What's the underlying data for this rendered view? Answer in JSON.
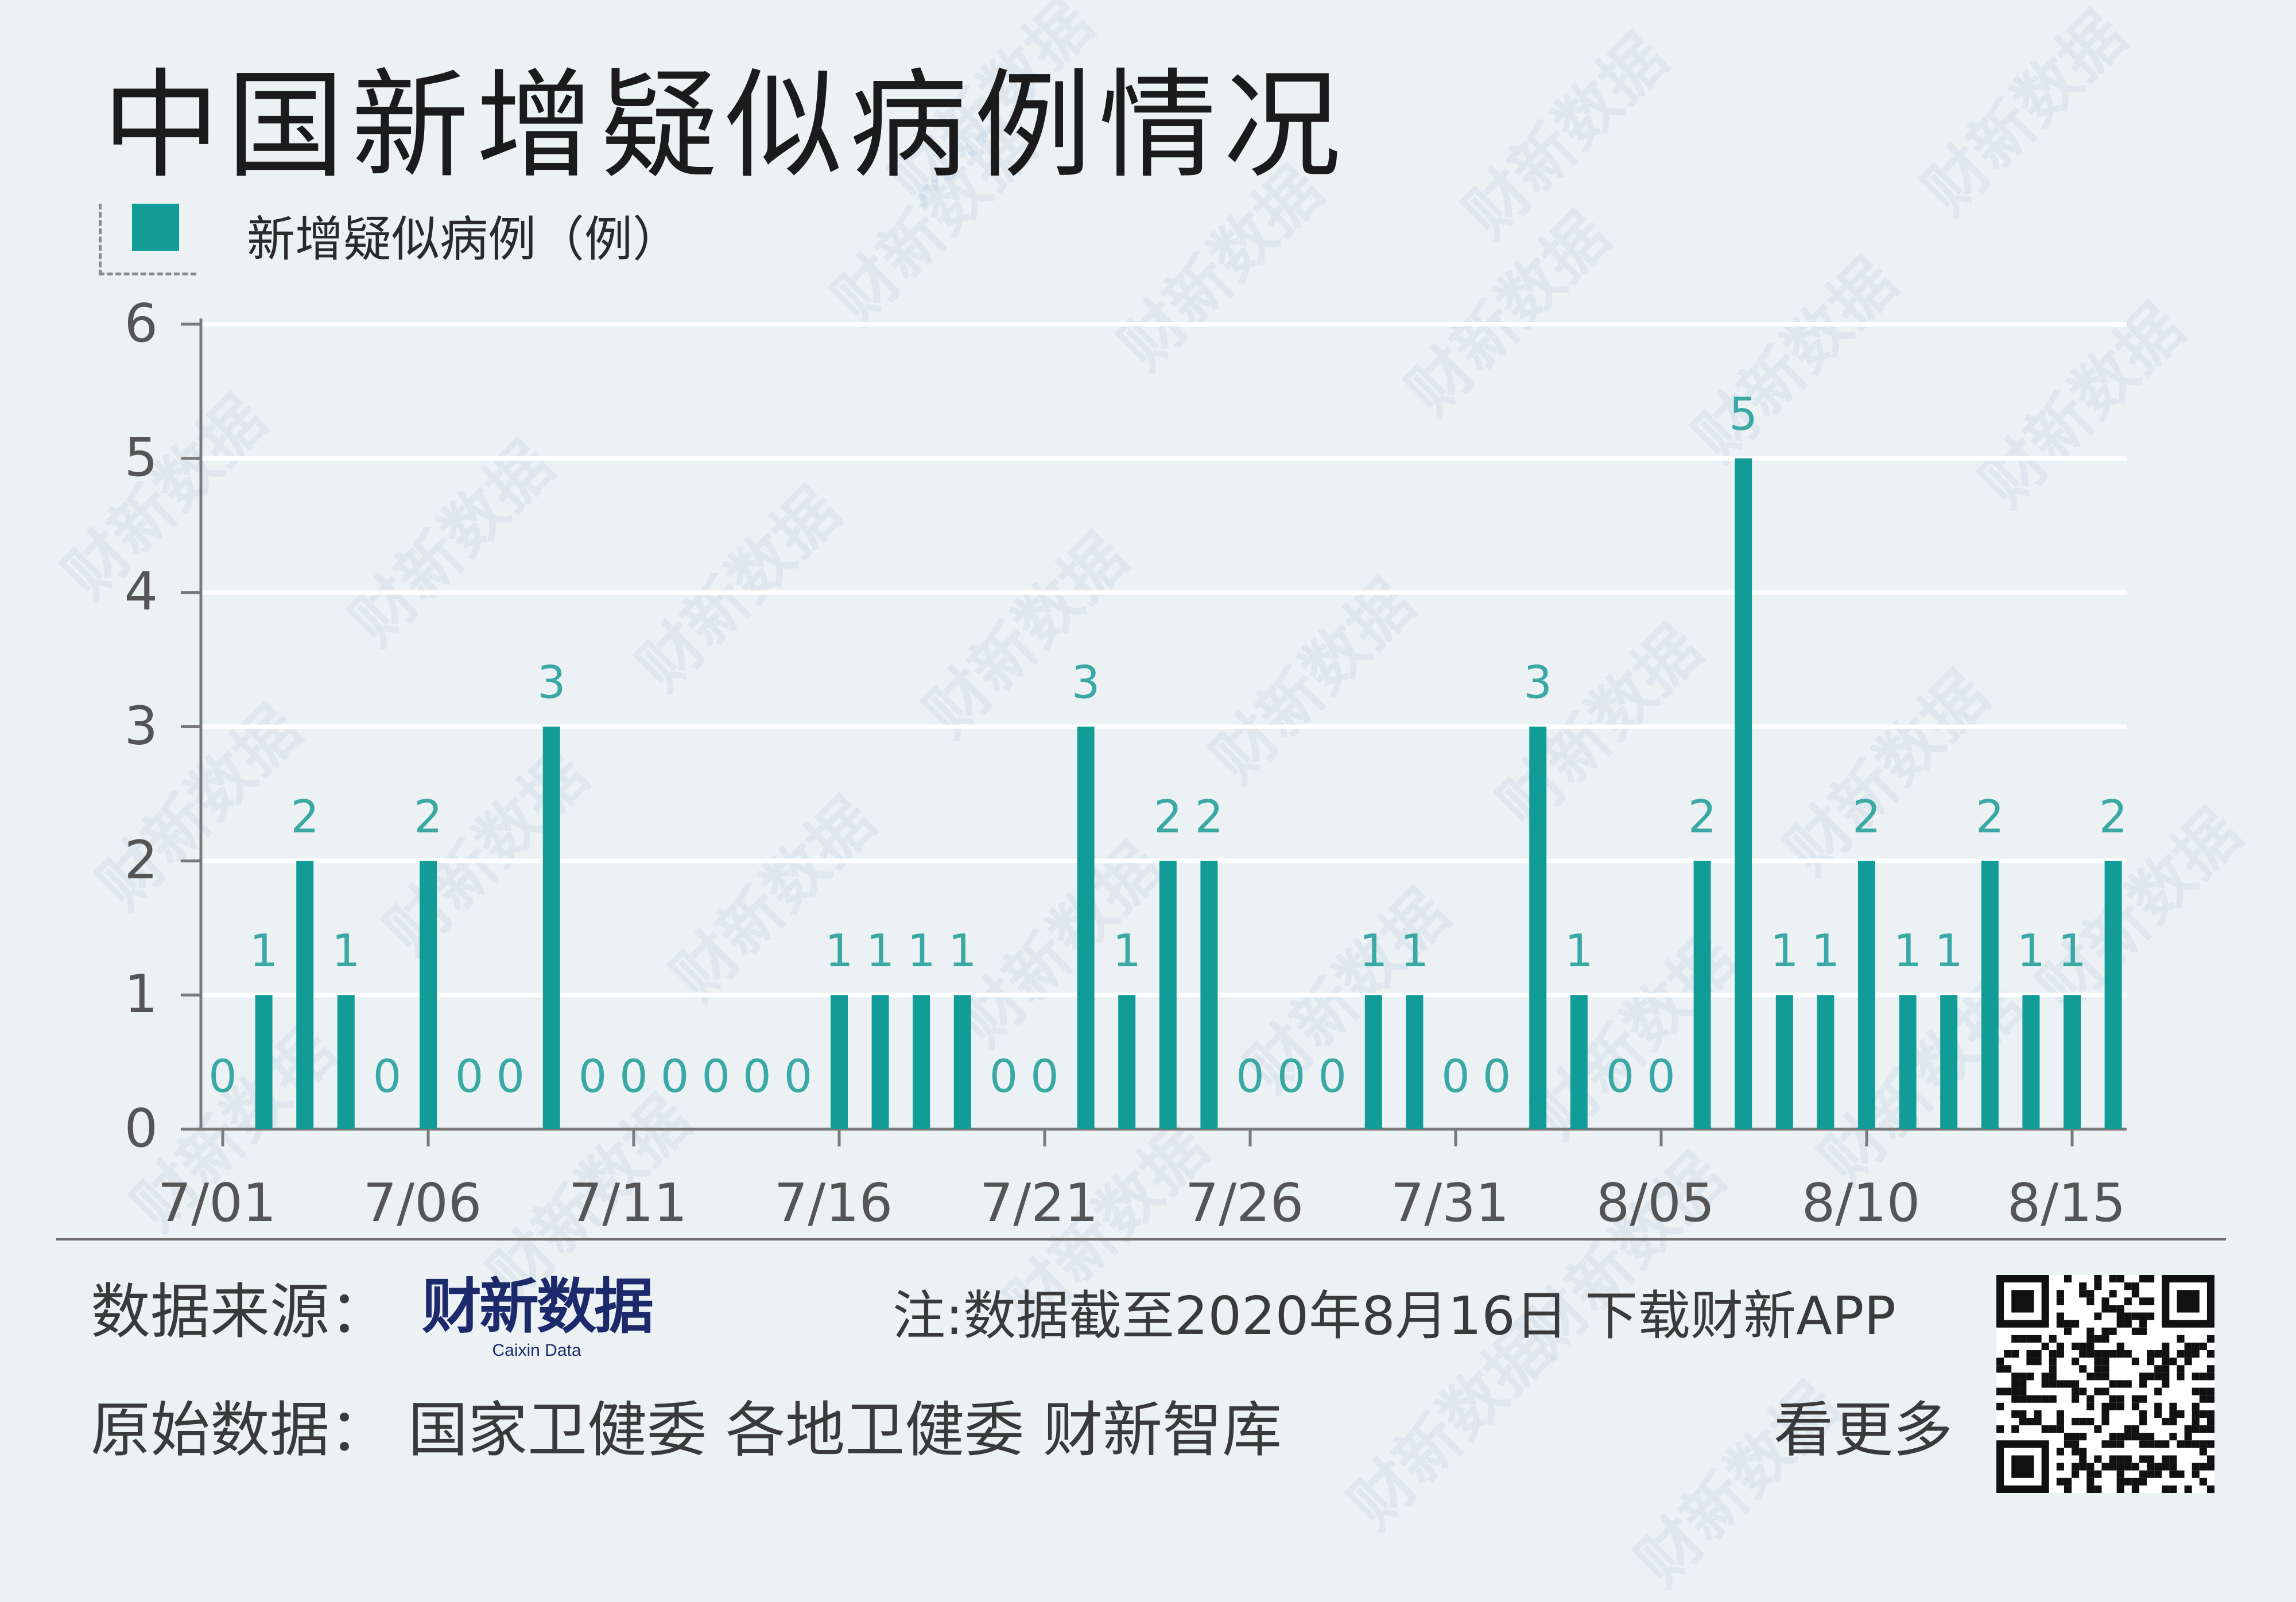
{
  "title": "中国新增疑似病例情况",
  "legend": {
    "label": "新增疑似病例（例）",
    "color": "#129c98"
  },
  "chart_data": {
    "type": "bar",
    "title": "中国新增疑似病例情况",
    "xlabel": "",
    "ylabel": "",
    "ylim": [
      0,
      6
    ],
    "yticks": [
      "0",
      "1",
      "2",
      "3",
      "4",
      "5",
      "6"
    ],
    "categories": [
      "7/01",
      "7/02",
      "7/03",
      "7/04",
      "7/05",
      "7/06",
      "7/07",
      "7/08",
      "7/09",
      "7/10",
      "7/11",
      "7/12",
      "7/13",
      "7/14",
      "7/15",
      "7/16",
      "7/17",
      "7/18",
      "7/19",
      "7/20",
      "7/21",
      "7/22",
      "7/23",
      "7/24",
      "7/25",
      "7/26",
      "7/27",
      "7/28",
      "7/29",
      "7/30",
      "7/31",
      "8/01",
      "8/02",
      "8/03",
      "8/04",
      "8/05",
      "8/06",
      "8/07",
      "8/08",
      "8/09",
      "8/10",
      "8/11",
      "8/12",
      "8/13",
      "8/14",
      "8/15",
      "8/16"
    ],
    "xtick_labels": [
      "7/01",
      "7/06",
      "7/11",
      "7/16",
      "7/21",
      "7/26",
      "7/31",
      "8/05",
      "8/10",
      "8/15"
    ],
    "series": [
      {
        "name": "新增疑似病例（例）",
        "values": [
          0,
          1,
          2,
          1,
          0,
          2,
          0,
          0,
          3,
          0,
          0,
          0,
          0,
          0,
          0,
          1,
          1,
          1,
          1,
          0,
          0,
          3,
          1,
          2,
          2,
          0,
          0,
          0,
          1,
          1,
          0,
          0,
          3,
          1,
          0,
          0,
          2,
          5,
          1,
          1,
          2,
          1,
          1,
          2,
          1,
          1,
          2
        ]
      }
    ],
    "grid": true,
    "bar_color": "#129c98",
    "label_color": "#3aa9a5"
  },
  "footer": {
    "source_label": "数据来源：",
    "logo_text": "财新数据",
    "logo_sub": "Caixin Data",
    "note": "注:数据截至2020年8月16日  下载财新APP",
    "origin_label": "原始数据：  国家卫健委  各地卫健委  财新智库",
    "more": "看更多"
  },
  "watermark_text": "财新数据"
}
